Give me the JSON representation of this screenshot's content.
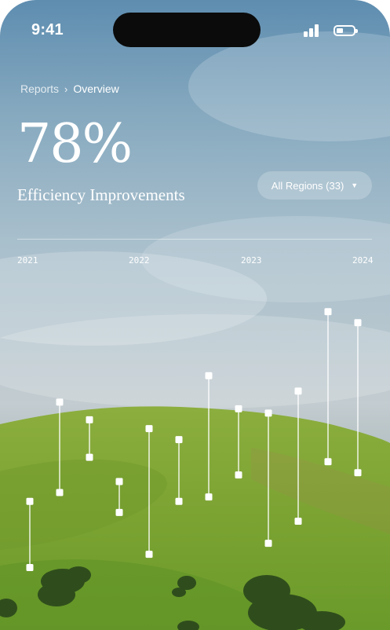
{
  "status_bar": {
    "time": "9:41"
  },
  "breadcrumb": {
    "parent": "Reports",
    "separator": "›",
    "current": "Overview"
  },
  "metric": {
    "value": "78%",
    "label": "Efficiency Improvements"
  },
  "filter": {
    "label": "All Regions (33)",
    "caret": "▼"
  },
  "chart_data": {
    "type": "range",
    "x_tick_labels": [
      "2021",
      "2022",
      "2023",
      "2024"
    ],
    "series": [
      {
        "values": [
          {
            "low": 8,
            "high": 38
          },
          {
            "low": 42,
            "high": 83
          },
          {
            "low": 58,
            "high": 75
          },
          {
            "low": 33,
            "high": 47
          },
          {
            "low": 14,
            "high": 71
          },
          {
            "low": 38,
            "high": 66
          },
          {
            "low": 40,
            "high": 95
          },
          {
            "low": 50,
            "high": 80
          },
          {
            "low": 19,
            "high": 78
          },
          {
            "low": 29,
            "high": 88
          },
          {
            "low": 56,
            "high": 124
          },
          {
            "low": 51,
            "high": 119
          }
        ]
      }
    ],
    "y_range": [
      0,
      130
    ],
    "color": "#ffffff"
  }
}
